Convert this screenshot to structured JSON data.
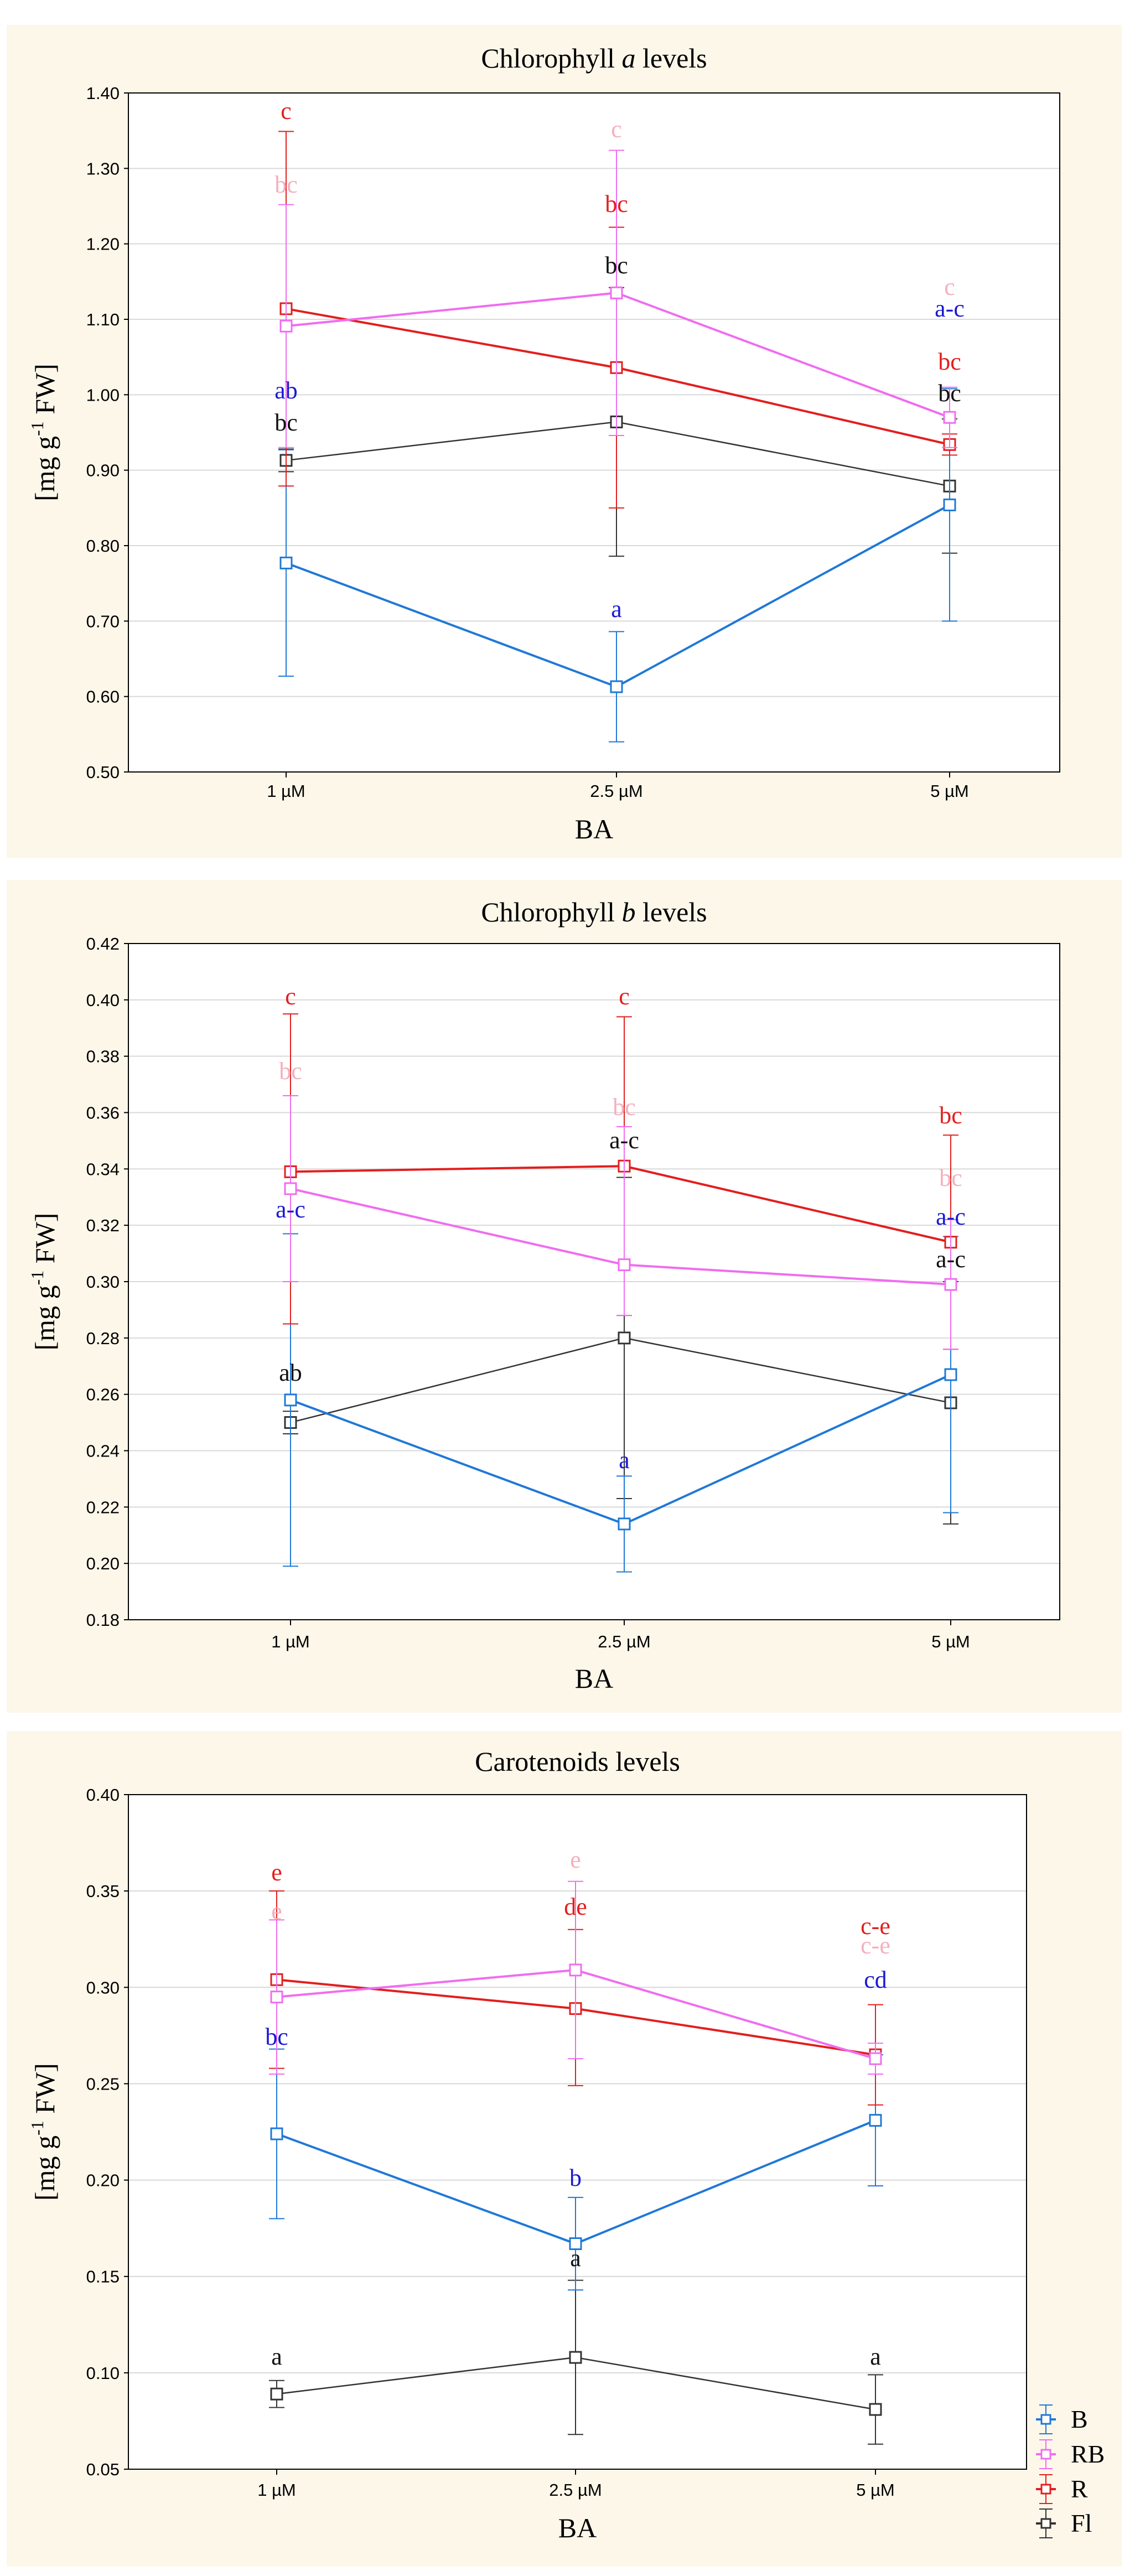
{
  "series_colors": {
    "B": "#1f78d7",
    "RB": "#f06cf0",
    "R": "#e31e1e",
    "Fl": "#333333"
  },
  "letter_colors": {
    "B": "#1a1ad0",
    "RB": "#f4b0bd",
    "R": "#e31e1e",
    "Fl": "#111111"
  },
  "legend": {
    "entries": [
      "B",
      "RB",
      "R",
      "Fl"
    ]
  },
  "chart_data": [
    {
      "type": "line",
      "title_prefix": "Chlorophyll ",
      "title_italic": "a",
      "title_suffix": " levels",
      "xlabel": "BA",
      "ylabel_main": "[mg g",
      "ylabel_sup": "-1",
      "ylabel_end": " FW]",
      "categories": [
        "1 µM",
        "2.5 µM",
        "5 µM"
      ],
      "ylim": [
        0.5,
        1.4
      ],
      "yticks": [
        "0.50",
        "0.60",
        "0.70",
        "0.80",
        "0.90",
        "1.00",
        "1.10",
        "1.20",
        "1.30",
        "1.40"
      ],
      "grid": true,
      "series": [
        {
          "name": "B",
          "values": [
            0.777,
            0.613,
            0.854
          ],
          "err_low": [
            0.627,
            0.54,
            0.7
          ],
          "err_high": [
            0.927,
            0.686,
            1.008
          ],
          "letters": [
            "ab",
            "a",
            "a-c"
          ]
        },
        {
          "name": "RB",
          "values": [
            1.091,
            1.135,
            0.97
          ],
          "err_low": [
            0.93,
            0.946,
            0.93
          ],
          "err_high": [
            1.252,
            1.324,
            1.01
          ],
          "letters": [
            "bc",
            "c",
            "c"
          ]
        },
        {
          "name": "R",
          "values": [
            1.114,
            1.036,
            0.934
          ],
          "err_low": [
            0.879,
            0.85,
            0.92
          ],
          "err_high": [
            1.349,
            1.222,
            0.948
          ],
          "letters": [
            "c",
            "bc",
            "bc"
          ]
        },
        {
          "name": "Fl",
          "values": [
            0.913,
            0.964,
            0.879
          ],
          "err_low": [
            0.898,
            0.786,
            0.79
          ],
          "err_high": [
            0.928,
            1.142,
            0.968
          ],
          "letters": [
            "bc",
            "bc",
            "bc"
          ]
        }
      ]
    },
    {
      "type": "line",
      "title_prefix": "Chlorophyll ",
      "title_italic": "b",
      "title_suffix": " levels",
      "xlabel": "BA",
      "ylabel_main": "[mg g",
      "ylabel_sup": "-1",
      "ylabel_end": " FW]",
      "categories": [
        "1 µM",
        "2.5 µM",
        "5 µM"
      ],
      "ylim": [
        0.18,
        0.42
      ],
      "yticks": [
        "0.18",
        "0.20",
        "0.22",
        "0.24",
        "0.26",
        "0.28",
        "0.30",
        "0.32",
        "0.34",
        "0.36",
        "0.38",
        "0.40",
        "0.42"
      ],
      "grid": true,
      "series": [
        {
          "name": "B",
          "values": [
            0.258,
            0.214,
            0.267
          ],
          "err_low": [
            0.199,
            0.197,
            0.218
          ],
          "err_high": [
            0.317,
            0.231,
            0.316
          ],
          "letters": [
            "a-c",
            "a",
            "a-c"
          ]
        },
        {
          "name": "RB",
          "values": [
            0.333,
            0.306,
            0.299
          ],
          "err_low": [
            0.3,
            0.288,
            0.276
          ],
          "err_high": [
            0.366,
            0.355,
            0.322
          ],
          "letters": [
            "bc",
            "bc",
            "bc"
          ]
        },
        {
          "name": "R",
          "values": [
            0.339,
            0.341,
            0.314
          ],
          "err_low": [
            0.285,
            0.288,
            0.276
          ],
          "err_high": [
            0.395,
            0.394,
            0.352
          ],
          "letters": [
            "c",
            "c",
            "bc"
          ]
        },
        {
          "name": "Fl",
          "values": [
            0.25,
            0.28,
            0.257
          ],
          "err_low": [
            0.246,
            0.223,
            0.214
          ],
          "err_high": [
            0.254,
            0.337,
            0.3
          ],
          "letters": [
            "ab",
            "a-c",
            "a-c"
          ]
        }
      ]
    },
    {
      "type": "line",
      "title_prefix": "Carotenoids levels",
      "title_italic": "",
      "title_suffix": "",
      "xlabel": "BA",
      "ylabel_main": "[mg g",
      "ylabel_sup": "-1",
      "ylabel_end": " FW]",
      "categories": [
        "1 µM",
        "2.5 µM",
        "5 µM"
      ],
      "ylim": [
        0.05,
        0.4
      ],
      "yticks": [
        "0.05",
        "0.10",
        "0.15",
        "0.20",
        "0.25",
        "0.30",
        "0.35",
        "0.40"
      ],
      "grid": true,
      "series": [
        {
          "name": "B",
          "values": [
            0.224,
            0.167,
            0.231
          ],
          "err_low": [
            0.18,
            0.143,
            0.197
          ],
          "err_high": [
            0.268,
            0.191,
            0.265
          ],
          "letters": [
            "bc",
            "b",
            "cd"
          ]
        },
        {
          "name": "RB",
          "values": [
            0.295,
            0.309,
            0.263
          ],
          "err_low": [
            0.255,
            0.263,
            0.255
          ],
          "err_high": [
            0.335,
            0.355,
            0.271
          ],
          "letters": [
            "e",
            "e",
            "c-e"
          ]
        },
        {
          "name": "R",
          "values": [
            0.304,
            0.289,
            0.265
          ],
          "err_low": [
            0.258,
            0.249,
            0.239
          ],
          "err_high": [
            0.35,
            0.33,
            0.291
          ],
          "letters": [
            "e",
            "de",
            "c-e"
          ]
        },
        {
          "name": "Fl",
          "values": [
            0.089,
            0.108,
            0.081
          ],
          "err_low": [
            0.082,
            0.068,
            0.063
          ],
          "err_high": [
            0.096,
            0.148,
            0.099
          ],
          "letters": [
            "a",
            "a",
            "a"
          ]
        }
      ]
    }
  ]
}
